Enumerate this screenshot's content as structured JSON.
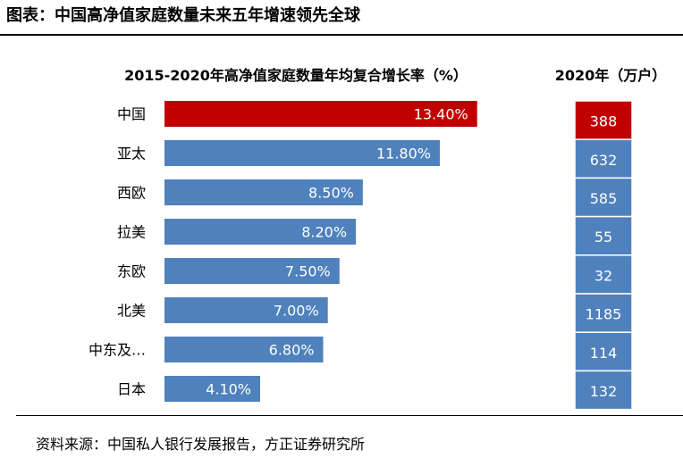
{
  "page": {
    "title": "图表：中国高净值家庭数量未来五年增速领先全球",
    "source": "资料来源：中国私人银行发展报告，方正证券研究所"
  },
  "colors": {
    "highlight": "#c00000",
    "bar": "#4f81bd",
    "box_border": "#ffffff"
  },
  "chart_data": [
    {
      "type": "bar",
      "orientation": "horizontal",
      "title": "2015-2020年高净值家庭数量年均复合增长率（%）",
      "categories": [
        "中国",
        "亚太",
        "西欧",
        "拉美",
        "东欧",
        "北美",
        "中东及…",
        "日本"
      ],
      "values": [
        13.4,
        11.8,
        8.5,
        8.2,
        7.5,
        7.0,
        6.8,
        4.1
      ],
      "value_labels": [
        "13.40%",
        "11.80%",
        "8.50%",
        "8.20%",
        "7.50%",
        "7.00%",
        "6.80%",
        "4.10%"
      ],
      "highlight_index": 0,
      "xlim": [
        0,
        15
      ],
      "grid": false
    },
    {
      "type": "table",
      "title": "2020年（万户）",
      "categories": [
        "中国",
        "亚太",
        "西欧",
        "拉美",
        "东欧",
        "北美",
        "中东及…",
        "日本"
      ],
      "values": [
        388,
        632,
        585,
        55,
        32,
        1185,
        114,
        132
      ],
      "highlight_index": 0
    }
  ]
}
